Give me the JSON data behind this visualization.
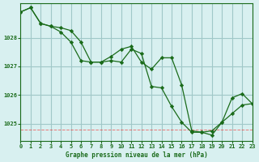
{
  "title": "Graphe pression niveau de la mer (hPa)",
  "bg_color": "#d8f0f0",
  "grid_color": "#a0c8c8",
  "line_color": "#1a6b1a",
  "marker_color": "#1a6b1a",
  "x_min": 0,
  "x_max": 23,
  "y_min": 1024.4,
  "y_max": 1029.2,
  "yticks": [
    1025,
    1026,
    1027,
    1028
  ],
  "xticks": [
    0,
    1,
    2,
    3,
    4,
    5,
    6,
    7,
    8,
    9,
    10,
    11,
    12,
    13,
    14,
    15,
    16,
    17,
    18,
    19,
    20,
    21,
    22,
    23
  ],
  "series1": [
    1028.9,
    1029.05,
    1028.5,
    1028.4,
    1028.2,
    1027.85,
    1027.2,
    1027.15,
    1027.15,
    1027.2,
    1027.15,
    1027.6,
    1027.45,
    1026.3,
    1026.25,
    1025.6,
    1025.05,
    1024.7,
    1024.7,
    1024.75,
    1025.05,
    1025.35,
    1025.65,
    1025.7
  ],
  "series2": [
    1028.9,
    1029.05,
    1028.5,
    1028.4,
    1028.35,
    1028.25,
    1027.85,
    1027.15,
    1027.15,
    1027.35,
    1027.6,
    1027.7,
    1027.15,
    1026.9,
    1027.3,
    1027.3,
    1026.35,
    1024.75,
    1024.7,
    1024.6,
    1025.05,
    1025.9,
    1026.05,
    1025.7
  ]
}
